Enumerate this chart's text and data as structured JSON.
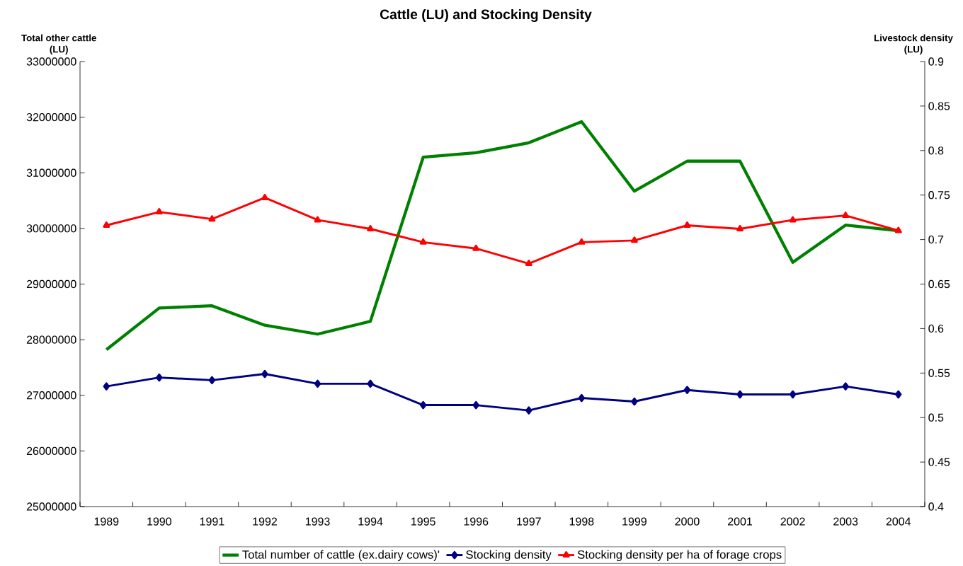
{
  "chart_data": {
    "type": "line",
    "title": "Cattle (LU) and Stocking Density",
    "ylabel": "Total other cattle\n(LU)",
    "y2label": "Livestock density\n(LU)",
    "categories": [
      "1989",
      "1990",
      "1991",
      "1992",
      "1993",
      "1994",
      "1995",
      "1996",
      "1997",
      "1998",
      "1999",
      "2000",
      "2001",
      "2002",
      "2003",
      "2004"
    ],
    "ylim": [
      25000000,
      33000000
    ],
    "yticks": [
      25000000,
      26000000,
      27000000,
      28000000,
      29000000,
      30000000,
      31000000,
      32000000,
      33000000
    ],
    "y2lim": [
      0.4,
      0.9
    ],
    "y2ticks": [
      0.4,
      0.45,
      0.5,
      0.55,
      0.6,
      0.65,
      0.7,
      0.75,
      0.8,
      0.85,
      0.9
    ],
    "legend": "bottom",
    "grid": false,
    "series": [
      {
        "name": "Total number of cattle (ex.dairy cows)'",
        "color": "#008000",
        "marker": "none",
        "axis": "y",
        "values": [
          27820000,
          28570000,
          28610000,
          28260000,
          28100000,
          28330000,
          31280000,
          31360000,
          31540000,
          31920000,
          30670000,
          31210000,
          31210000,
          29390000,
          30060000,
          29960000
        ]
      },
      {
        "name": "Stocking density",
        "color": "#000080",
        "marker": "diamond",
        "axis": "y2",
        "values": [
          0.535,
          0.545,
          0.542,
          0.549,
          0.538,
          0.538,
          0.514,
          0.514,
          0.508,
          0.522,
          0.518,
          0.531,
          0.526,
          0.526,
          0.535,
          0.526
        ]
      },
      {
        "name": "Stocking density per ha of forage crops",
        "color": "#ff0000",
        "marker": "triangle",
        "axis": "y2",
        "values": [
          0.716,
          0.731,
          0.723,
          0.747,
          0.722,
          0.712,
          0.697,
          0.69,
          0.673,
          0.697,
          0.699,
          0.716,
          0.712,
          0.722,
          0.727,
          0.71
        ]
      }
    ]
  }
}
